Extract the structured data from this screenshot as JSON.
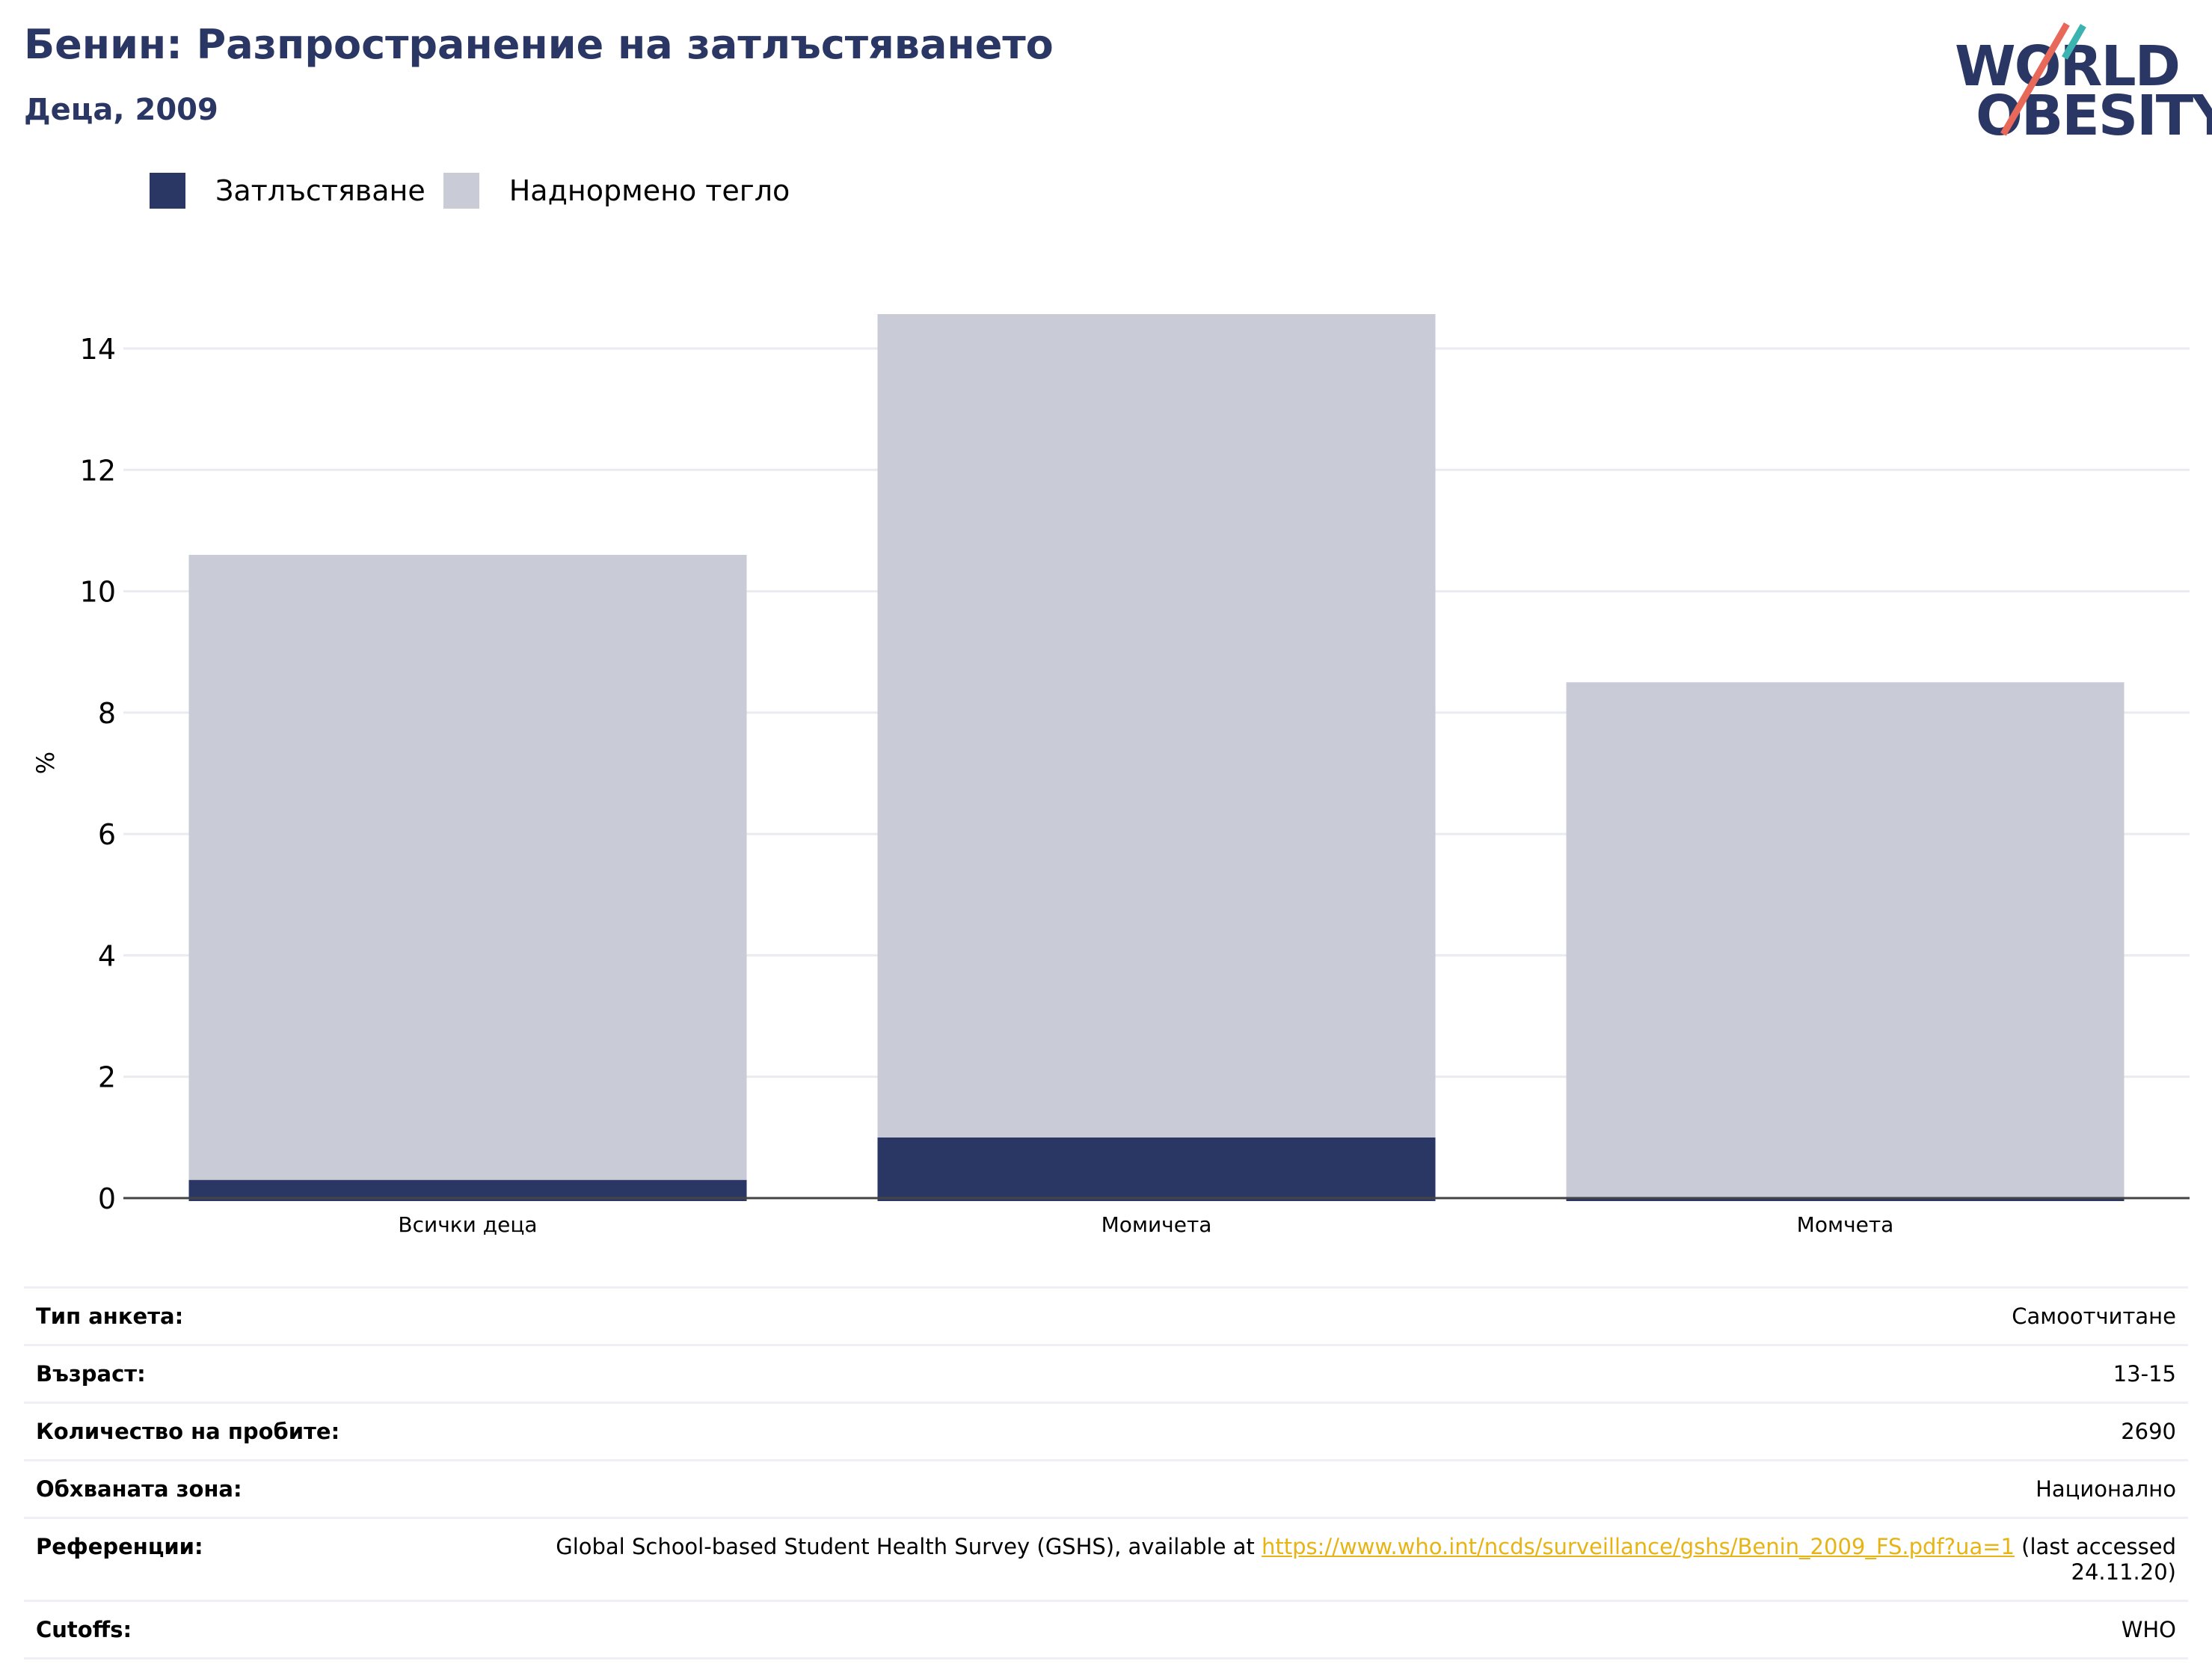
{
  "header": {
    "title": "Бенин: Разпространение на затлъстяването",
    "subtitle": "Деца, 2009"
  },
  "logo": {
    "line1": "WORLD",
    "line2": "OBESITY"
  },
  "legend": [
    {
      "label": "Затлъстяване",
      "color": "#2a3663"
    },
    {
      "label": "Наднормено тегло",
      "color": "#c9cbd6"
    }
  ],
  "chart_data": {
    "type": "bar",
    "stacked": true,
    "categories": [
      "Всички деца",
      "Момичета",
      "Момчета"
    ],
    "series": [
      {
        "name": "Затлъстяване",
        "values": [
          0.3,
          1.0,
          0.0
        ],
        "color": "#2a3663"
      },
      {
        "name": "Наднормено тегло",
        "values": [
          10.3,
          13.7,
          8.5
        ],
        "color": "#c9cbd6"
      }
    ],
    "ylabel": "%",
    "ylim": [
      0,
      14
    ],
    "yticks": [
      0,
      2,
      4,
      6,
      8,
      10,
      12,
      14
    ],
    "grid": true,
    "legend_position": "top-left"
  },
  "info": [
    {
      "key": "Тип анкета:",
      "value": "Самоотчитане"
    },
    {
      "key": "Възраст:",
      "value": "13-15"
    },
    {
      "key": "Количество на пробите:",
      "value": "2690"
    },
    {
      "key": "Обхваната зона:",
      "value": "Национално"
    },
    {
      "key": "Референции:",
      "value_prefix": "Global School-based Student Health Survey (GSHS), available at ",
      "link": "https://www.who.int/ncds/surveillance/gshs/Benin_2009_FS.pdf?ua=1",
      "value_suffix": " (last accessed 24.11.20)"
    },
    {
      "key": "Cutoffs:",
      "value": "WHO"
    }
  ]
}
